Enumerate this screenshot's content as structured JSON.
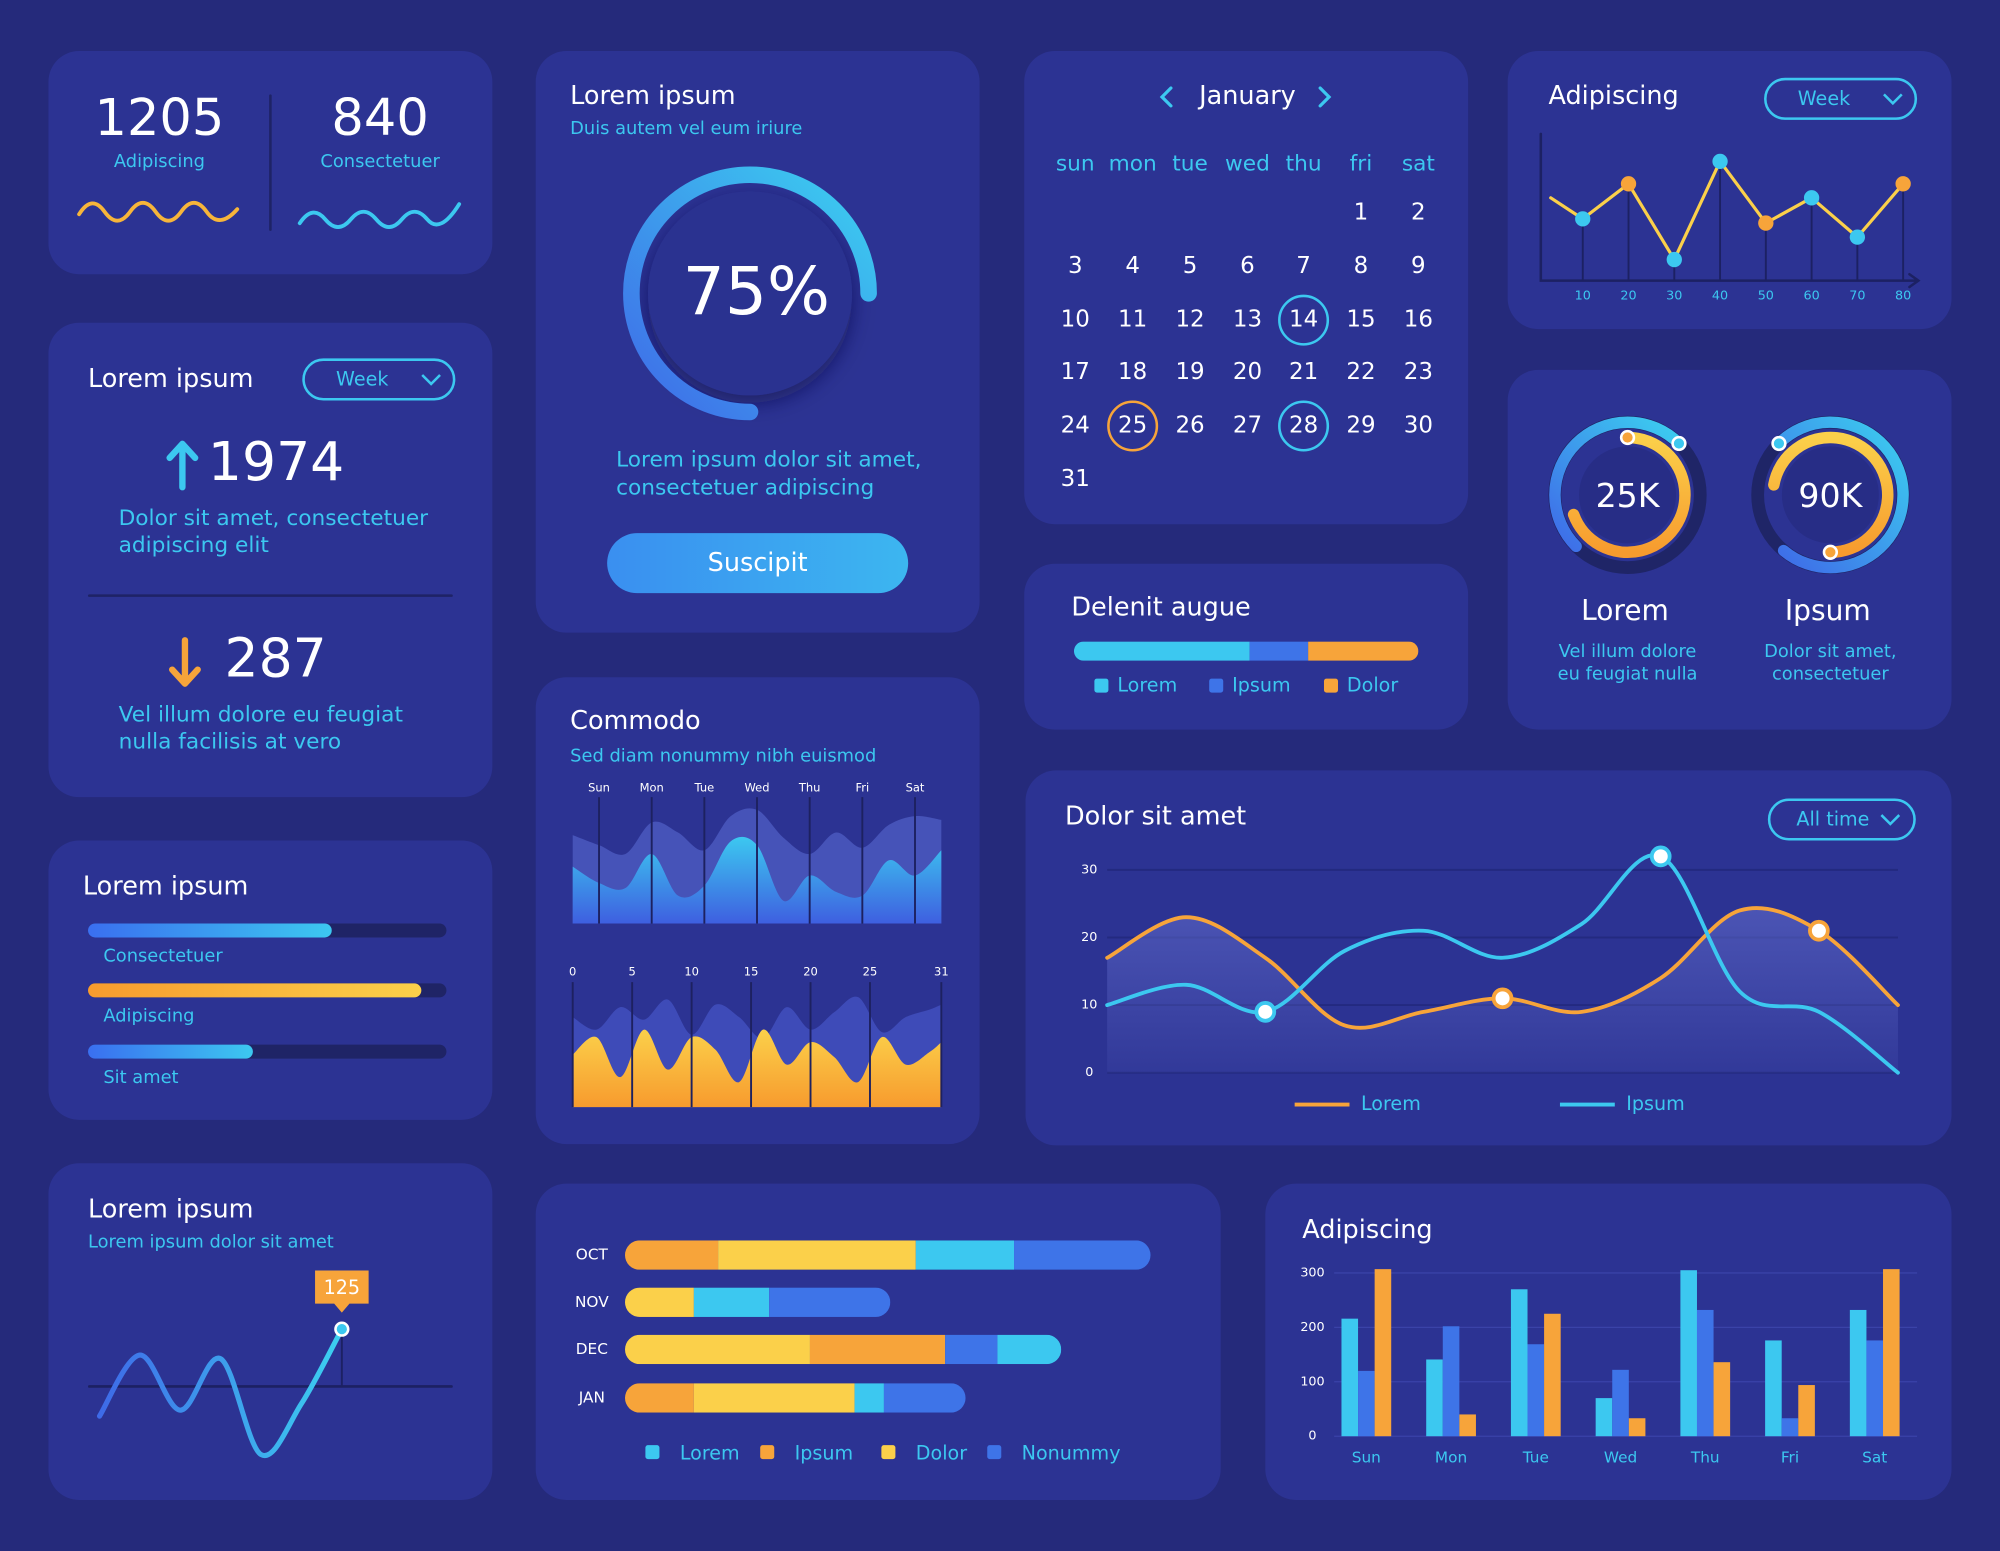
{
  "stats": [
    {
      "value": 1205,
      "label": "Adipiscing"
    },
    {
      "value": 840,
      "label": "Consectetuer"
    }
  ],
  "gauge": {
    "type": "gauge",
    "title": "Lorem ipsum",
    "subtitle": "Duis autem vel eum iriure",
    "value": 75,
    "value_label": "75%",
    "text": [
      "Lorem ipsum dolor sit amet,",
      "consectetuer adipiscing"
    ],
    "button": "Suscipit"
  },
  "calendar": {
    "month": "January",
    "weekdays": [
      "sun",
      "mon",
      "tue",
      "wed",
      "thu",
      "fri",
      "sat"
    ],
    "weeks": [
      [
        null,
        null,
        null,
        null,
        null,
        1,
        2
      ],
      [
        3,
        4,
        5,
        6,
        7,
        8,
        9
      ],
      [
        10,
        11,
        12,
        13,
        14,
        15,
        16
      ],
      [
        17,
        18,
        19,
        20,
        21,
        22,
        23
      ],
      [
        24,
        25,
        26,
        27,
        28,
        29,
        30
      ],
      [
        31
      ]
    ],
    "circled": [
      14,
      28
    ],
    "circled_color": "#3cc8f0",
    "marked": [
      25
    ],
    "marked_color": "#f7a43a"
  },
  "week_chart": {
    "type": "line",
    "title": "Adipiscing",
    "dropdown": "Week",
    "color": "#fbd04a",
    "x": [
      3,
      10,
      20,
      30,
      40,
      50,
      60,
      70,
      80
    ],
    "values": [
      59,
      44,
      69,
      15,
      85,
      41,
      59,
      31,
      69
    ],
    "point_colors": [
      null,
      "#3cc8f0",
      "#f7a43a",
      "#3cc8f0",
      "#3cc8f0",
      "#f7a43a",
      "#3cc8f0",
      "#3cc8f0",
      "#f7a43a"
    ],
    "xlim": [
      0,
      85
    ],
    "xticks": [
      10,
      20,
      30,
      40,
      50,
      60,
      70,
      80
    ],
    "ylim": [
      0,
      100
    ]
  },
  "trend": {
    "title": "Lorem ipsum",
    "dropdown": "Week",
    "items": [
      {
        "value": 1974,
        "direction": "up",
        "color": "#3cc8f0",
        "text": [
          "Dolor sit amet, consectetuer",
          "adipiscing elit"
        ]
      },
      {
        "value": 287,
        "direction": "down",
        "color": "#f7a43a",
        "text": [
          "Vel illum dolore eu feugiat",
          "nulla facilisis at vero"
        ]
      }
    ]
  },
  "delenit": {
    "type": "stacked_bar",
    "title": "Delenit augue",
    "xlim": [
      0,
      100
    ],
    "series": [
      {
        "name": "Lorem",
        "color": "#3cc8f0",
        "value": 51
      },
      {
        "name": "Ipsum",
        "color": "#3e74e8",
        "value": 17
      },
      {
        "name": "Dolor",
        "color": "#f7a43a",
        "value": 32
      }
    ]
  },
  "rings": [
    {
      "label": "25K",
      "name": "Lorem",
      "text": [
        "Vel illum dolore",
        "eu feugiat nulla"
      ]
    },
    {
      "label": "90K",
      "name": "Ipsum",
      "text": [
        "Dolor sit amet,",
        "consectetuer"
      ]
    }
  ],
  "progress": {
    "title": "Lorem ipsum",
    "xlim": [
      0,
      100
    ],
    "bars": [
      {
        "name": "Consectetuer",
        "value": 68,
        "colors": [
          "#3a6ff0",
          "#3cc8f0"
        ]
      },
      {
        "name": "Adipiscing",
        "value": 93,
        "colors": [
          "#f79b2e",
          "#fbd04a"
        ]
      },
      {
        "name": "Sit amet",
        "value": 46,
        "colors": [
          "#3a6ff0",
          "#3cc8f0"
        ]
      }
    ]
  },
  "commodo": {
    "title": "Commodo",
    "subtitle": "Sed diam nonummy nibh euismod",
    "top": {
      "type": "area",
      "xlim": [
        -0.5,
        6.5
      ],
      "ylim": [
        0,
        100
      ],
      "xticks": [
        {
          "value": 0,
          "label": "Sun"
        },
        {
          "value": 1,
          "label": "Mon"
        },
        {
          "value": 2,
          "label": "Tue"
        },
        {
          "value": 3,
          "label": "Wed"
        },
        {
          "value": 4,
          "label": "Thu"
        },
        {
          "value": 5,
          "label": "Fri"
        },
        {
          "value": 6,
          "label": "Sat"
        }
      ],
      "x": [
        -0.5,
        0,
        0.5,
        1,
        1.5,
        2,
        2.5,
        3,
        3.5,
        4,
        4.5,
        5,
        5.5,
        6,
        6.5
      ],
      "series": [
        {
          "color": "#4653b8",
          "values": [
            70,
            62,
            55,
            80,
            72,
            58,
            85,
            90,
            68,
            55,
            72,
            60,
            78,
            85,
            82
          ]
        },
        {
          "color": "#3cc8f0",
          "values": [
            45,
            32,
            28,
            55,
            22,
            30,
            65,
            62,
            18,
            38,
            25,
            22,
            50,
            38,
            58
          ]
        }
      ]
    },
    "bottom": {
      "type": "area",
      "xlim": [
        0,
        31
      ],
      "ylim": [
        0,
        100
      ],
      "xticks": [
        0,
        5,
        10,
        15,
        20,
        25,
        31
      ],
      "x": [
        0,
        2,
        4,
        6,
        8,
        10,
        12,
        14,
        16,
        18,
        20,
        22,
        24,
        26,
        28,
        30,
        31
      ],
      "series": [
        {
          "color": "#3e4bb8",
          "values": [
            72,
            62,
            80,
            70,
            86,
            58,
            82,
            72,
            55,
            80,
            62,
            76,
            88,
            60,
            72,
            78,
            82
          ]
        },
        {
          "color": "#fbd04a",
          "values": [
            42,
            56,
            24,
            62,
            30,
            56,
            46,
            20,
            62,
            34,
            52,
            40,
            20,
            56,
            34,
            44,
            52
          ]
        }
      ]
    }
  },
  "dolor": {
    "type": "line",
    "title": "Dolor sit amet",
    "dropdown": "All time",
    "ylim": [
      0,
      30
    ],
    "yticks": [
      0,
      10,
      20,
      30
    ],
    "series": [
      {
        "name": "Lorem",
        "color": "#f7a43a",
        "values": [
          17,
          23,
          17,
          7,
          9,
          11,
          9,
          14,
          24,
          21,
          10
        ],
        "markers": [
          5,
          9
        ]
      },
      {
        "name": "Ipsum",
        "color": "#3cc8f0",
        "values": [
          10,
          13,
          9,
          18,
          21,
          17,
          22,
          32,
          12,
          9,
          0
        ],
        "markers": [
          2,
          7
        ]
      }
    ]
  },
  "spark": {
    "type": "line",
    "title": "Lorem ipsum",
    "subtitle": "Lorem ipsum dolor sit amet",
    "values": [
      -63,
      69,
      -50,
      61,
      -146,
      -36,
      125
    ],
    "ylim": [
      -200,
      150
    ],
    "label_index": 6
  },
  "months": {
    "type": "stacked_bar_h",
    "categories": [
      "OCT",
      "NOV",
      "DEC",
      "JAN"
    ],
    "xlim": [
      0,
      450
    ],
    "series": [
      {
        "name": "Lorem",
        "color": "#3cc8f0",
        "values": [
          77,
          59,
          50,
          23
        ]
      },
      {
        "name": "Ipsum",
        "color": "#f7a43a",
        "values": [
          73,
          0,
          106,
          54
        ]
      },
      {
        "name": "Dolor",
        "color": "#fbd04a",
        "values": [
          155,
          54,
          145,
          126
        ]
      },
      {
        "name": "Nonummy",
        "color": "#3e74e8",
        "values": [
          107,
          95,
          41,
          64
        ]
      }
    ],
    "order": [
      [
        1,
        2,
        0,
        3
      ],
      [
        2,
        0,
        3
      ],
      [
        2,
        1,
        3,
        0
      ],
      [
        1,
        2,
        0,
        3
      ]
    ]
  },
  "weekly": {
    "type": "grouped_bar",
    "title": "Adipiscing",
    "ylim": [
      0,
      300
    ],
    "yticks": [
      0,
      100,
      200,
      300
    ],
    "grid": true,
    "categories": [
      "Sun",
      "Mon",
      "Tue",
      "Wed",
      "Thu",
      "Fri",
      "Sat"
    ],
    "series": [
      {
        "color": "#3cc8f0",
        "values": [
          216,
          141,
          270,
          70,
          305,
          176,
          232
        ]
      },
      {
        "color": "#3e74e8",
        "values": [
          120,
          202,
          169,
          122,
          232,
          33,
          176
        ]
      },
      {
        "color": "#f7a43a",
        "values": [
          307,
          40,
          225,
          33,
          136,
          94,
          307
        ]
      }
    ]
  }
}
